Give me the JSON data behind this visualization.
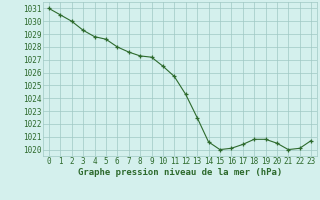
{
  "x": [
    0,
    1,
    2,
    3,
    4,
    5,
    6,
    7,
    8,
    9,
    10,
    11,
    12,
    13,
    14,
    15,
    16,
    17,
    18,
    19,
    20,
    21,
    22,
    23
  ],
  "y": [
    1031.0,
    1030.5,
    1030.0,
    1029.3,
    1028.8,
    1028.6,
    1028.0,
    1027.6,
    1027.3,
    1027.2,
    1026.5,
    1025.7,
    1024.3,
    1022.5,
    1020.6,
    1020.0,
    1020.1,
    1020.4,
    1020.8,
    1020.8,
    1020.5,
    1020.0,
    1020.1,
    1020.7
  ],
  "ylim": [
    1019.5,
    1031.5
  ],
  "yticks": [
    1020,
    1021,
    1022,
    1023,
    1024,
    1025,
    1026,
    1027,
    1028,
    1029,
    1030,
    1031
  ],
  "xlabel": "Graphe pression niveau de la mer (hPa)",
  "line_color": "#2d6a2d",
  "marker_color": "#2d6a2d",
  "bg_color": "#d4f0ed",
  "grid_color": "#a0c8c4",
  "text_color": "#2d6a2d",
  "xlabel_fontsize": 6.5,
  "tick_fontsize": 5.5
}
